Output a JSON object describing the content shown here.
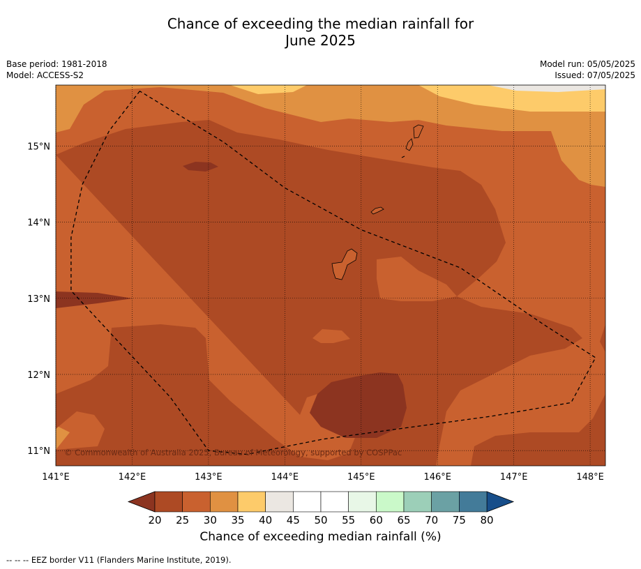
{
  "title": {
    "line1": "Chance of exceeding the median rainfall for",
    "line2": "June 2025"
  },
  "info_left": {
    "base_period": "Base period: 1981-2018",
    "model": "Model: ACCESS-S2"
  },
  "info_right": {
    "model_run": "Model run: 05/05/2025",
    "issued": "Issued: 07/05/2025"
  },
  "map": {
    "lon_range": [
      141.0,
      148.2
    ],
    "lat_range": [
      10.8,
      15.8
    ],
    "lon_ticks": [
      141,
      142,
      143,
      144,
      145,
      146,
      147,
      148
    ],
    "lat_ticks": [
      11,
      12,
      13,
      14,
      15
    ],
    "lon_labels": [
      "141°E",
      "142°E",
      "143°E",
      "144°E",
      "145°E",
      "146°E",
      "147°E",
      "148°E"
    ],
    "lat_labels": [
      "11°N",
      "12°N",
      "13°N",
      "14°N",
      "15°N"
    ],
    "copyright": "© Commonwealth of Australia 2025, Bureau of Meteorology, supported by COSPPac",
    "eez_border": [
      [
        142.1,
        15.72
      ],
      [
        141.7,
        15.2
      ],
      [
        141.35,
        14.5
      ],
      [
        141.2,
        13.8
      ],
      [
        141.2,
        13.1
      ],
      [
        141.8,
        12.45
      ],
      [
        142.5,
        11.7
      ],
      [
        143.0,
        11.0
      ],
      [
        143.5,
        10.95
      ],
      [
        144.5,
        11.15
      ],
      [
        145.6,
        11.3
      ],
      [
        146.7,
        11.45
      ],
      [
        147.75,
        11.63
      ],
      [
        148.07,
        12.22
      ],
      [
        147.4,
        12.65
      ],
      [
        146.3,
        13.4
      ],
      [
        145.0,
        13.9
      ],
      [
        144.0,
        14.45
      ],
      [
        143.2,
        15.05
      ],
      [
        142.1,
        15.72
      ]
    ]
  },
  "colorbar": {
    "tick_labels": [
      "20",
      "25",
      "30",
      "35",
      "40",
      "45",
      "50",
      "55",
      "60",
      "65",
      "70",
      "75",
      "80"
    ],
    "label": "Chance of exceeding median rainfall (%)",
    "under_color": "#8c3420",
    "over_color": "#174e8a",
    "colors": [
      "#ad4a24",
      "#c9612f",
      "#e09142",
      "#fdcb6a",
      "#ebe7e2",
      "#ffffff",
      "#ffffff",
      "#e8f7e7",
      "#caf9c9",
      "#9ccfb8",
      "#6ba1a4",
      "#437b99"
    ]
  },
  "footnote": "--  --  -- EEZ border V11 (Flanders Marine Institute, 2019)."
}
